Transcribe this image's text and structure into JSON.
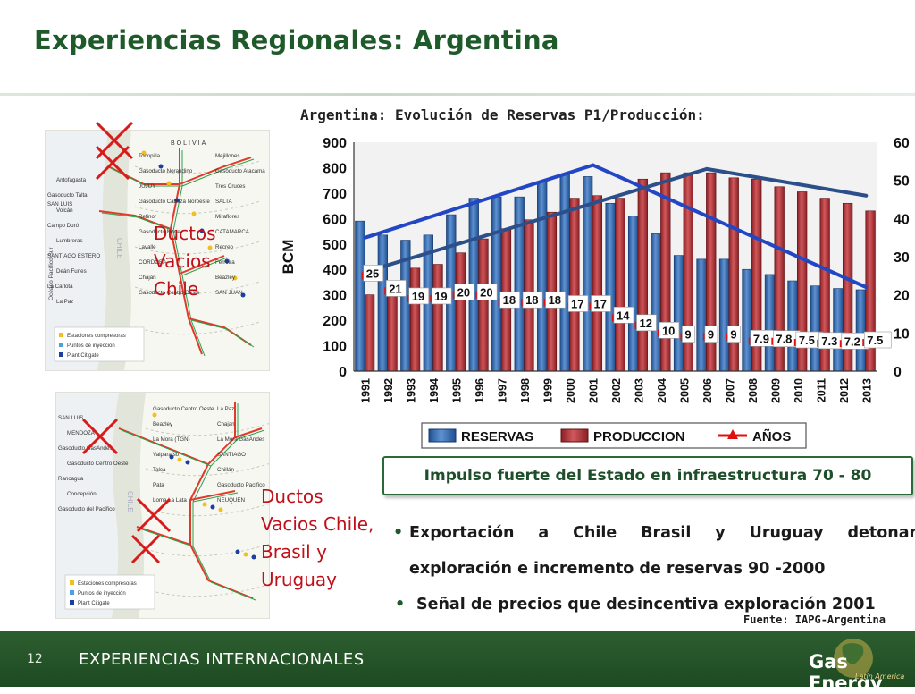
{
  "slide": {
    "title": "Experiencias Regionales: Argentina",
    "chart_title": "Argentina: Evolución de Reservas P1/Producción:",
    "banner": "Impulso fuerte del Estado en infraestructura 70 - 80",
    "bullets": [
      {
        "line1": "Exportación a Chile Brasil y Uruguay detonan",
        "line2": "exploración e incremento de reservas  90 -2000"
      },
      {
        "line1": "Señal de precios que desincentiva exploración 2001"
      }
    ],
    "source": "Fuente: IAPG-Argentina",
    "page_number": "12",
    "footer_label": "EXPERIENCIAS INTERNACIONALES",
    "logo_main": "Gas Energy",
    "logo_sub": "Latin America"
  },
  "maps": [
    {
      "note_lines": [
        "Ductos",
        "Vacios",
        "Chile"
      ],
      "labels": [
        "BOLIVIA",
        "Tocopilla",
        "Mejillones",
        "Antofagasta",
        "Gasoducto Norandino",
        "Gasoducto Atacama",
        "Gasoducto Taltal",
        "JUJUY",
        "Tres Cruces",
        "Volcán",
        "Gasoducto Cabeza Noroeste",
        "SALTA",
        "Campo Duró",
        "Refinor",
        "Miraflores",
        "Lumbreras",
        "Gasoducto Norte",
        "CATAMARCA",
        "SANTIAGO ESTERO",
        "Lavalle",
        "Recreo",
        "Deán Funes",
        "CORDOBA",
        "Ferreira",
        "La Carlota",
        "Chajan",
        "Beazley",
        "La Paz",
        "Gasoducto Centro Oeste",
        "SAN JUAN",
        "SAN LUIS",
        "Océano Pacífico Sur",
        "CHILE"
      ],
      "legend": [
        "Estaciones compresoras",
        "Puntos de inyección",
        "Plant Citigate"
      ]
    },
    {
      "note_lines": [
        "Ductos",
        "Vacios Chile,",
        "Brasil y",
        "Uruguay"
      ],
      "labels": [
        "SAN LUIS",
        "Gasoducto Centro Oeste",
        "La Paz",
        "MENDOZA",
        "Beazley",
        "Chajan",
        "Gasoducto GasAndes",
        "La Mora (TGN)",
        "La Mora GasAndes",
        "Gasoducto Centro Oeste",
        "Valparaíso",
        "SANTIAGO",
        "Rancagua",
        "Talca",
        "Chillán",
        "Concepción",
        "Pata",
        "Gasoducto Pacífico",
        "Gasoducto del Pacífico",
        "Loma La Lata",
        "NEUQUEN",
        "CHILE"
      ],
      "legend": [
        "Estaciones compresoras",
        "Puntos de inyección",
        "Plant Citigate"
      ]
    }
  ],
  "colors": {
    "title": "#1f5a2a",
    "reservas": "#3b6fb2",
    "produccion": "#b8363a",
    "anos_marker": "#e01010",
    "trend_line": "#2a4f9e",
    "note_red": "#c0101a",
    "footer": "#24532a"
  },
  "chart_data": {
    "type": "bar",
    "categories": [
      "1991",
      "1992",
      "1993",
      "1994",
      "1995",
      "1996",
      "1997",
      "1998",
      "1999",
      "2000",
      "2001",
      "2002",
      "2003",
      "2004",
      "2005",
      "2006",
      "2007",
      "2008",
      "2009",
      "2010",
      "2011",
      "2012",
      "2013"
    ],
    "ylabel": "BCM",
    "ylim": [
      0,
      900
    ],
    "yticks": [
      "0",
      "100",
      "200",
      "300",
      "400",
      "500",
      "600",
      "700",
      "800",
      "900"
    ],
    "ylim_right": [
      0,
      60
    ],
    "yticks_right": [
      "0",
      "10",
      "20",
      "30",
      "40",
      "50",
      "60"
    ],
    "legend": [
      "RESERVAS",
      "PRODUCCION",
      "AÑOS"
    ],
    "legend_position": "bottom",
    "series": [
      {
        "name": "RESERVAS",
        "values": [
          590,
          535,
          515,
          535,
          615,
          680,
          685,
          685,
          745,
          775,
          765,
          660,
          610,
          540,
          455,
          440,
          440,
          400,
          380,
          355,
          335,
          325,
          320
        ]
      },
      {
        "name": "PRODUCCION",
        "values": [
          300,
          330,
          405,
          420,
          465,
          520,
          560,
          595,
          625,
          680,
          690,
          680,
          755,
          780,
          780,
          780,
          760,
          755,
          725,
          705,
          680,
          660,
          630
        ]
      },
      {
        "name": "AÑOS",
        "axis": "right",
        "values": [
          25,
          21,
          19,
          19,
          20,
          20,
          18,
          18,
          18,
          17,
          17,
          14,
          12,
          10,
          9,
          9,
          9,
          7.9,
          7.8,
          7.5,
          7.3,
          7.2,
          7.5
        ]
      }
    ],
    "point_labels": [
      "25",
      "21",
      "19",
      "19",
      "20",
      "20",
      "18",
      "18",
      "18",
      "17",
      "17",
      "14",
      "12",
      "10",
      "9",
      "9",
      "9",
      "7.9",
      "7.8",
      "7.5",
      "7.3",
      "7.2",
      "7.5"
    ],
    "trend_lines": [
      {
        "x": [
          "1991",
          "2001"
        ],
        "y_right": [
          35,
          54
        ]
      },
      {
        "x": [
          "2001",
          "2013"
        ],
        "y_right": [
          54,
          22
        ]
      },
      {
        "x": [
          "1991",
          "2006"
        ],
        "y_right": [
          26,
          53
        ]
      },
      {
        "x": [
          "2006",
          "2013"
        ],
        "y_right": [
          53,
          46
        ]
      }
    ],
    "grid": false
  }
}
